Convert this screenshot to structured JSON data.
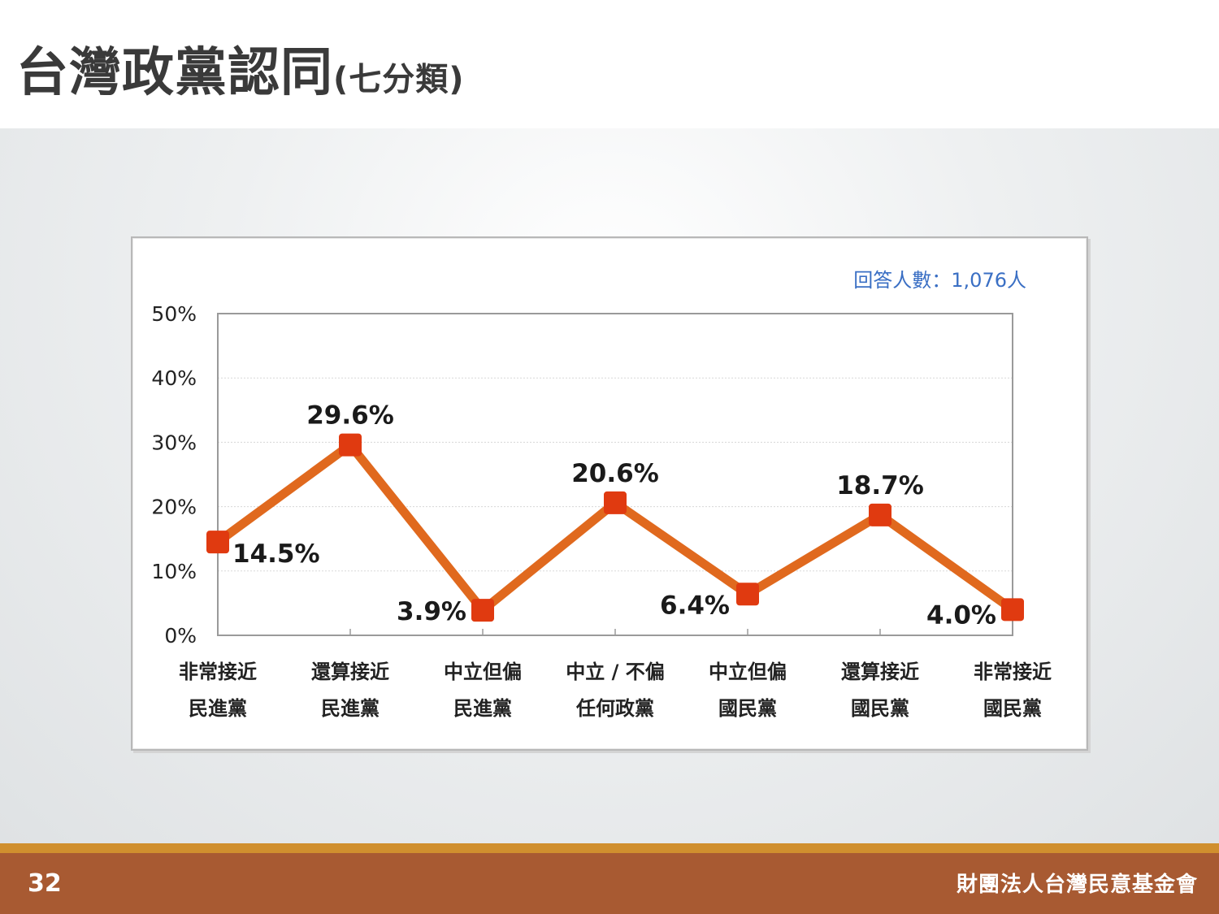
{
  "header": {
    "title_main": "台灣政黨認同",
    "title_sub": "(七分類)"
  },
  "chart_data": {
    "type": "line",
    "note": "回答人數：1,076人",
    "ylim": [
      0,
      50
    ],
    "yticks": [
      "0%",
      "10%",
      "20%",
      "30%",
      "40%",
      "50%"
    ],
    "ytick_values": [
      0,
      10,
      20,
      30,
      40,
      50
    ],
    "grid": true,
    "categories": [
      [
        "非常接近",
        "民進黨"
      ],
      [
        "還算接近",
        "民進黨"
      ],
      [
        "中立但偏",
        "民進黨"
      ],
      [
        "中立 / 不偏",
        "任何政黨"
      ],
      [
        "中立但偏",
        "國民黨"
      ],
      [
        "還算接近",
        "國民黨"
      ],
      [
        "非常接近",
        "國民黨"
      ]
    ],
    "series": [
      {
        "values": [
          14.5,
          29.6,
          3.9,
          20.6,
          6.4,
          18.7,
          4.0
        ],
        "labels": [
          "14.5%",
          "29.6%",
          "3.9%",
          "20.6%",
          "6.4%",
          "18.7%",
          "4.0%"
        ],
        "line_color": "#e0691e",
        "marker_color": "#e03a10"
      }
    ]
  },
  "footer": {
    "page": "32",
    "org": "財團法人台灣民意基金會"
  }
}
